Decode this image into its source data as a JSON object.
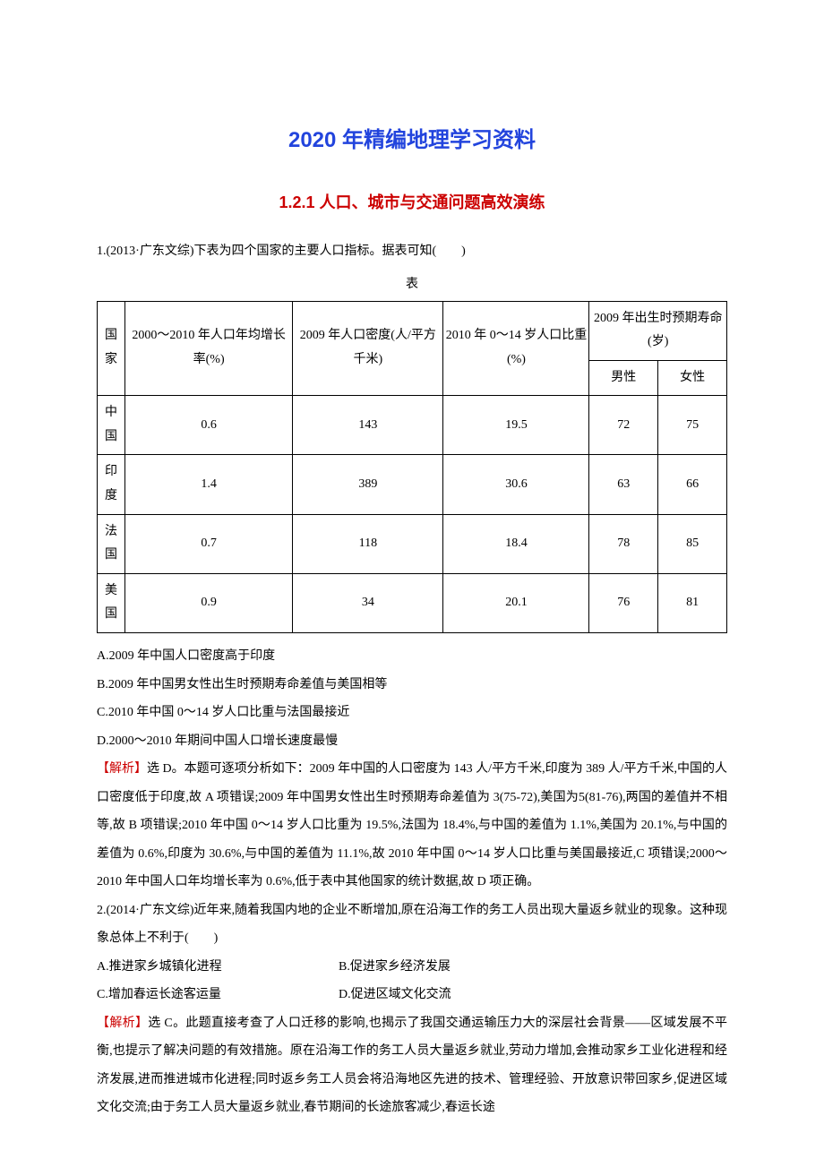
{
  "titles": {
    "main": "2020 年精编地理学习资料",
    "sub": "1.2.1 人口、城市与交通问题高效演练"
  },
  "q1": {
    "lead": "1.(2013·广东文综)下表为四个国家的主要人口指标。据表可知(　　)",
    "table_caption": "表",
    "headers": {
      "country": "国家",
      "growth": "2000～2010 年人口年均增长率(%)",
      "density": "2009 年人口密度(人/平方千米)",
      "ratio": "2010 年 0～14 岁人口比重(%)",
      "life": "2009 年出生时预期寿命(岁)",
      "male": "男性",
      "female": "女性"
    },
    "rows": [
      {
        "country": "中国",
        "growth": "0.6",
        "density": "143",
        "ratio": "19.5",
        "male": "72",
        "female": "75"
      },
      {
        "country": "印度",
        "growth": "1.4",
        "density": "389",
        "ratio": "30.6",
        "male": "63",
        "female": "66"
      },
      {
        "country": "法国",
        "growth": "0.7",
        "density": "118",
        "ratio": "18.4",
        "male": "78",
        "female": "85"
      },
      {
        "country": "美国",
        "growth": "0.9",
        "density": "34",
        "ratio": "20.1",
        "male": "76",
        "female": "81"
      }
    ],
    "choices": {
      "a": "A.2009 年中国人口密度高于印度",
      "b": "B.2009 年中国男女性出生时预期寿命差值与美国相等",
      "c": "C.2010 年中国 0～14 岁人口比重与法国最接近",
      "d": "D.2000～2010 年期间中国人口增长速度最慢"
    },
    "analysis_label": "【解析】",
    "analysis_body": "选 D。本题可逐项分析如下：2009 年中国的人口密度为 143 人/平方千米,印度为 389 人/平方千米,中国的人口密度低于印度,故 A 项错误;2009 年中国男女性出生时预期寿命差值为 3(75-72),美国为5(81-76),两国的差值并不相等,故 B 项错误;2010 年中国 0～14 岁人口比重为 19.5%,法国为 18.4%,与中国的差值为 1.1%,美国为 20.1%,与中国的差值为 0.6%,印度为 30.6%,与中国的差值为 11.1%,故 2010 年中国 0～14 岁人口比重与美国最接近,C 项错误;2000～2010 年中国人口年均增长率为 0.6%,低于表中其他国家的统计数据,故 D 项正确。"
  },
  "q2": {
    "lead": "2.(2014·广东文综)近年来,随着我国内地的企业不断增加,原在沿海工作的务工人员出现大量返乡就业的现象。这种现象总体上不利于(　　)",
    "choices": {
      "a": "A.推进家乡城镇化进程",
      "b": "B.促进家乡经济发展",
      "c": "C.增加春运长途客运量",
      "d": "D.促进区域文化交流"
    },
    "analysis_label": "【解析】",
    "analysis_body": "选 C。此题直接考查了人口迁移的影响,也揭示了我国交通运输压力大的深层社会背景——区域发展不平衡,也提示了解决问题的有效措施。原在沿海工作的务工人员大量返乡就业,劳动力增加,会推动家乡工业化进程和经济发展,进而推进城市化进程;同时返乡务工人员会将沿海地区先进的技术、管理经验、开放意识带回家乡,促进区域文化交流;由于务工人员大量返乡就业,春节期间的长途旅客减少,春运长途"
  }
}
